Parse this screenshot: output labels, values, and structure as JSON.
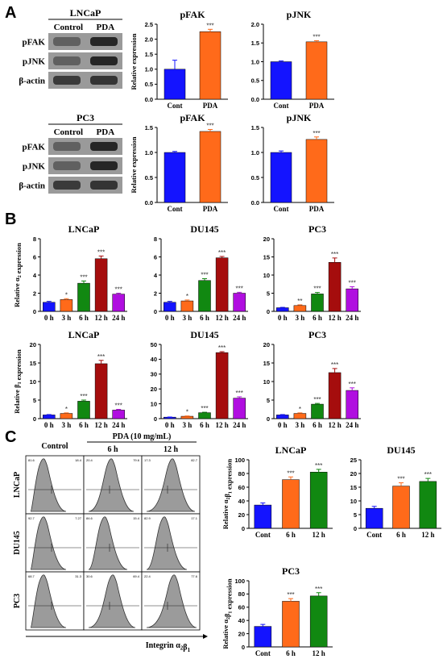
{
  "panels": {
    "A": "A",
    "B": "B",
    "C": "C"
  },
  "blots": [
    {
      "cell": "LNCaP",
      "conditions": [
        "Control",
        "PDA"
      ],
      "rows": [
        "pFAK",
        "pJNK",
        "β-actin"
      ]
    },
    {
      "cell": "PC3",
      "conditions": [
        "Control",
        "PDA"
      ],
      "rows": [
        "pFAK",
        "pJNK",
        "β-actin"
      ]
    }
  ],
  "flow": {
    "treatment": "PDA (10 mg/mL)",
    "columns": [
      "Control",
      "6 h",
      "12 h"
    ],
    "rows": [
      "LNCaP",
      "DU145",
      "PC3"
    ],
    "xlabel": "Integrin α2β1",
    "gates": [
      [
        [
          "81.6",
          "18.4"
        ],
        [
          "20.4",
          "79.6"
        ],
        [
          "17.3",
          "82.7"
        ]
      ],
      [
        [
          "92.7",
          "7.27"
        ],
        [
          "84.6",
          "15.4"
        ],
        [
          "82.9",
          "17.1"
        ]
      ],
      [
        [
          "68.7",
          "31.3"
        ],
        [
          "30.6",
          "69.4"
        ],
        [
          "22.4",
          "77.6"
        ]
      ]
    ]
  },
  "chart_data": [
    {
      "id": "A-LNCaP-pFAK",
      "type": "bar",
      "title": "pFAK",
      "ylabel": "Relative expression",
      "categories": [
        "Cont",
        "PDA"
      ],
      "values": [
        1.0,
        2.25
      ],
      "errors": [
        0.3,
        0.08
      ],
      "sig": [
        "",
        "***"
      ],
      "ylim": [
        0,
        2.5
      ],
      "ticks": [
        "0.0",
        "0.5",
        "1.0",
        "1.5",
        "2.0",
        "2.5"
      ]
    },
    {
      "id": "A-LNCaP-pJNK",
      "type": "bar",
      "title": "pJNK",
      "ylabel": "",
      "categories": [
        "Cont",
        "PDA"
      ],
      "values": [
        1.0,
        1.53
      ],
      "errors": [
        0.02,
        0.03
      ],
      "sig": [
        "",
        "***"
      ],
      "ylim": [
        0,
        2.0
      ],
      "ticks": [
        "0.0",
        "0.5",
        "1.0",
        "1.5",
        "2.0"
      ]
    },
    {
      "id": "A-PC3-pFAK",
      "type": "bar",
      "title": "pFAK",
      "ylabel": "Relative expression",
      "categories": [
        "Cont",
        "PDA"
      ],
      "values": [
        1.0,
        1.42
      ],
      "errors": [
        0.02,
        0.04
      ],
      "sig": [
        "",
        "***"
      ],
      "ylim": [
        0,
        1.5
      ],
      "ticks": [
        "0.0",
        "0.5",
        "1.0",
        "1.5"
      ]
    },
    {
      "id": "A-PC3-pJNK",
      "type": "bar",
      "title": "pJNK",
      "ylabel": "",
      "categories": [
        "Cont",
        "PDA"
      ],
      "values": [
        1.0,
        1.26
      ],
      "errors": [
        0.03,
        0.05
      ],
      "sig": [
        "",
        "***"
      ],
      "ylim": [
        0,
        1.5
      ],
      "ticks": [
        "0.0",
        "0.5",
        "1.0",
        "1.5"
      ]
    },
    {
      "id": "B-LNCaP-a2",
      "type": "bar",
      "title": "LNCaP",
      "ylabel": "Relative α2 expression",
      "categories": [
        "0 h",
        "3 h",
        "6 h",
        "12 h",
        "24 h"
      ],
      "values": [
        1.0,
        1.3,
        3.1,
        5.8,
        1.9
      ],
      "errors": [
        0.1,
        0.1,
        0.25,
        0.3,
        0.1
      ],
      "sig": [
        "",
        "*",
        "***",
        "***",
        "***"
      ],
      "ylim": [
        0,
        8
      ],
      "ticks": [
        "0",
        "2",
        "4",
        "6",
        "8"
      ]
    },
    {
      "id": "B-DU145-a2",
      "type": "bar",
      "title": "DU145",
      "ylabel": "",
      "categories": [
        "0 h",
        "3 h",
        "6 h",
        "12 h",
        "24 h"
      ],
      "values": [
        1.0,
        1.15,
        3.4,
        5.9,
        2.0
      ],
      "errors": [
        0.1,
        0.1,
        0.2,
        0.15,
        0.1
      ],
      "sig": [
        "",
        "*",
        "***",
        "***",
        "***"
      ],
      "ylim": [
        0,
        8
      ],
      "ticks": [
        "0",
        "2",
        "4",
        "6",
        "8"
      ]
    },
    {
      "id": "B-PC3-a2",
      "type": "bar",
      "title": "PC3",
      "ylabel": "",
      "categories": [
        "0 h",
        "3 h",
        "6 h",
        "12 h",
        "24 h"
      ],
      "values": [
        1.0,
        1.6,
        4.8,
        13.5,
        6.2
      ],
      "errors": [
        0.1,
        0.2,
        0.4,
        1.2,
        0.6
      ],
      "sig": [
        "",
        "**",
        "***",
        "***",
        "***"
      ],
      "ylim": [
        0,
        20
      ],
      "ticks": [
        "0",
        "5",
        "10",
        "15",
        "20"
      ]
    },
    {
      "id": "B-LNCaP-b1",
      "type": "bar",
      "title": "LNCaP",
      "ylabel": "Relative β1 expression",
      "categories": [
        "0 h",
        "3 h",
        "6 h",
        "12 h",
        "24 h"
      ],
      "values": [
        1.0,
        1.4,
        4.7,
        14.8,
        2.3
      ],
      "errors": [
        0.1,
        0.15,
        0.3,
        0.9,
        0.2
      ],
      "sig": [
        "",
        "*",
        "***",
        "***",
        "***"
      ],
      "ylim": [
        0,
        20
      ],
      "ticks": [
        "0",
        "5",
        "10",
        "15",
        "20"
      ]
    },
    {
      "id": "B-DU145-b1",
      "type": "bar",
      "title": "DU145",
      "ylabel": "",
      "categories": [
        "0 h",
        "3 h",
        "6 h",
        "12 h",
        "24 h"
      ],
      "values": [
        1.0,
        1.6,
        4.0,
        44.5,
        13.8
      ],
      "errors": [
        0.1,
        0.2,
        0.3,
        0.6,
        0.9
      ],
      "sig": [
        "",
        "*",
        "***",
        "***",
        "***"
      ],
      "ylim": [
        0,
        50
      ],
      "ticks": [
        "0",
        "10",
        "20",
        "30",
        "40",
        "50"
      ]
    },
    {
      "id": "B-PC3-b1",
      "type": "bar",
      "title": "PC3",
      "ylabel": "",
      "categories": [
        "0 h",
        "3 h",
        "6 h",
        "12 h",
        "24 h"
      ],
      "values": [
        1.0,
        1.4,
        3.9,
        12.4,
        7.6
      ],
      "errors": [
        0.1,
        0.15,
        0.2,
        1.1,
        0.7
      ],
      "sig": [
        "",
        "*",
        "***",
        "***",
        "***"
      ],
      "ylim": [
        0,
        20
      ],
      "ticks": [
        "0",
        "5",
        "10",
        "15",
        "20"
      ]
    },
    {
      "id": "C-LNCaP",
      "type": "bar",
      "title": "LNCaP",
      "ylabel": "Relative α2β1 expression",
      "categories": [
        "Cont",
        "6 h",
        "12 h"
      ],
      "values": [
        34,
        71,
        82
      ],
      "errors": [
        3,
        4,
        4
      ],
      "sig": [
        "",
        "***",
        "***"
      ],
      "ylim": [
        0,
        100
      ],
      "ticks": [
        "0",
        "20",
        "40",
        "60",
        "80",
        "100"
      ]
    },
    {
      "id": "C-DU145",
      "type": "bar",
      "title": "DU145",
      "ylabel": "",
      "categories": [
        "Cont",
        "6 h",
        "12 h"
      ],
      "values": [
        7.3,
        15.4,
        17.1
      ],
      "errors": [
        0.7,
        1.2,
        1.1
      ],
      "sig": [
        "",
        "***",
        "***"
      ],
      "ylim": [
        0,
        25
      ],
      "ticks": [
        "0",
        "5",
        "10",
        "15",
        "20",
        "25"
      ]
    },
    {
      "id": "C-PC3",
      "type": "bar",
      "title": "PC3",
      "ylabel": "Relative α2β1 expression",
      "categories": [
        "Cont",
        "6 h",
        "12 h"
      ],
      "values": [
        31,
        69,
        77
      ],
      "errors": [
        3,
        4,
        5
      ],
      "sig": [
        "",
        "***",
        "***"
      ],
      "ylim": [
        0,
        100
      ],
      "ticks": [
        "0",
        "20",
        "40",
        "60",
        "80",
        "100"
      ]
    }
  ],
  "colors": {
    "blue": "#1414ff",
    "orange": "#ff6a1a",
    "green": "#118811",
    "darkred": "#a50d0d",
    "purple": "#b00ee0"
  }
}
